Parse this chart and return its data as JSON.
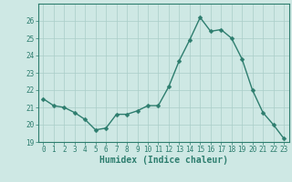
{
  "x": [
    0,
    1,
    2,
    3,
    4,
    5,
    6,
    7,
    8,
    9,
    10,
    11,
    12,
    13,
    14,
    15,
    16,
    17,
    18,
    19,
    20,
    21,
    22,
    23
  ],
  "y": [
    21.5,
    21.1,
    21.0,
    20.7,
    20.3,
    19.7,
    19.8,
    20.6,
    20.6,
    20.8,
    21.1,
    21.1,
    22.2,
    23.7,
    24.9,
    26.2,
    25.4,
    25.5,
    25.0,
    23.8,
    22.0,
    20.7,
    20.0,
    19.2
  ],
  "xlabel": "Humidex (Indice chaleur)",
  "line_color": "#2d7d6e",
  "marker_color": "#2d7d6e",
  "bg_color": "#cee8e4",
  "grid_color": "#aacdc8",
  "ylim": [
    19,
    27
  ],
  "yticks": [
    19,
    20,
    21,
    22,
    23,
    24,
    25,
    26
  ],
  "xlim": [
    -0.5,
    23.5
  ],
  "xticks": [
    0,
    1,
    2,
    3,
    4,
    5,
    6,
    7,
    8,
    9,
    10,
    11,
    12,
    13,
    14,
    15,
    16,
    17,
    18,
    19,
    20,
    21,
    22,
    23
  ],
  "tick_label_fontsize": 5.5,
  "xlabel_fontsize": 7.0,
  "line_width": 1.0,
  "marker_size": 2.5
}
